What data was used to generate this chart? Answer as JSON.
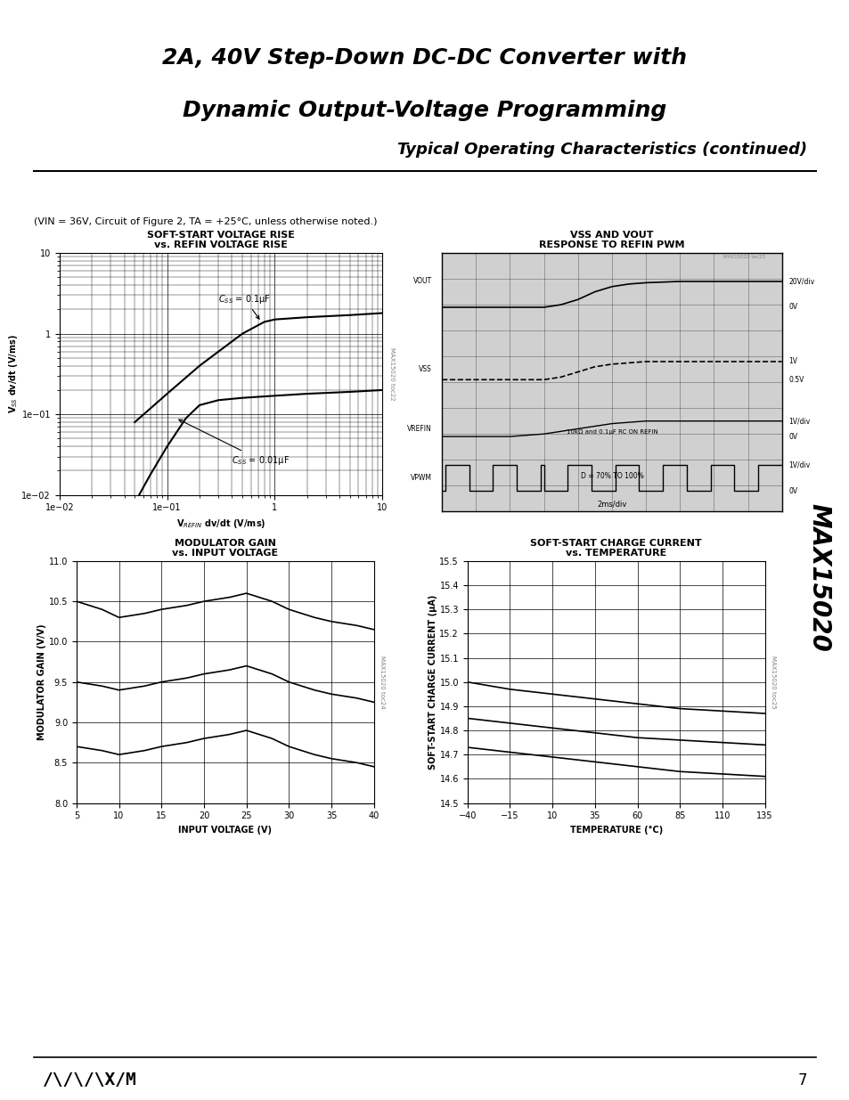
{
  "title_line1": "2A, 40V Step-Down DC-DC Converter with",
  "title_line2": "Dynamic Output-Voltage Programming",
  "section_title": "Typical Operating Characteristics (continued)",
  "subtitle": "(Vᴵₙ = 36V, Circuit of Figure 2, Tₐ = +25°C, unless otherwise noted.)",
  "subtitle_plain": "(VIN = 36V, Circuit of Figure 2, TA = +25°C, unless otherwise noted.)",
  "page_number": "7",
  "chart1": {
    "title_line1": "SOFT-START VOLTAGE RISE",
    "title_line2": "vs. REFIN VOLTAGE RISE",
    "xlabel": "VᴼEFIN dv/dt (V/ms)",
    "ylabel": "VSS dw/dt (V/ms)",
    "xlabel_plain": "VREFIN dv/dt (V/ms)",
    "ylabel_plain": "Vss dv/dt (V/ms)",
    "xmin": 0.01,
    "xmax": 10,
    "ymin": 0.01,
    "ymax": 10,
    "watermark": "MAX15020 toc22",
    "curve1_label": "CSS = 0.1μF",
    "curve2_label": "CSS = 0.01μF",
    "curve1_x": [
      0.05,
      0.1,
      0.2,
      0.5,
      0.8,
      1.0,
      2.0,
      5.0,
      10.0
    ],
    "curve1_y": [
      0.08,
      0.18,
      0.4,
      1.0,
      1.4,
      1.5,
      1.6,
      1.7,
      1.8
    ],
    "curve2_x": [
      0.05,
      0.07,
      0.1,
      0.15,
      0.2,
      0.3,
      0.5,
      1.0,
      2.0,
      5.0,
      10.0
    ],
    "curve2_y": [
      0.008,
      0.018,
      0.04,
      0.09,
      0.13,
      0.15,
      0.16,
      0.17,
      0.18,
      0.19,
      0.2
    ]
  },
  "chart2": {
    "title_line1": "VSS AND VOUT",
    "title_line2": "RESPONSE TO REFIN PWM",
    "watermark": "MAX15020 toc23",
    "is_oscilloscope": true,
    "signals": [
      "VOUT",
      "VSS",
      "VREFIN",
      "VPWM"
    ],
    "annotations": [
      "20V/div",
      "0V",
      "1V",
      "0.5V",
      "1V/div",
      "0V",
      "10kΩ and 0.1μF RC ON REFIN",
      "1V/div",
      "D = 70% TO 100%",
      "0V"
    ],
    "time_annotation": "2ms/div"
  },
  "chart3": {
    "title_line1": "MODULATOR GAIN",
    "title_line2": "vs. INPUT VOLTAGE",
    "xlabel": "INPUT VOLTAGE (V)",
    "ylabel": "MODULATOR GAIN (V/V)",
    "xmin": 5,
    "xmax": 40,
    "ymin": 8.0,
    "ymax": 11.0,
    "xticks": [
      5,
      10,
      15,
      20,
      25,
      30,
      35,
      40
    ],
    "yticks": [
      8.0,
      8.5,
      9.0,
      9.5,
      10.0,
      10.5,
      11.0
    ],
    "watermark": "MAX15020 toc24",
    "curve1_x": [
      5,
      8,
      10,
      13,
      15,
      18,
      20,
      23,
      25,
      28,
      30,
      33,
      35,
      38,
      40
    ],
    "curve1_y": [
      10.5,
      10.4,
      10.3,
      10.35,
      10.4,
      10.45,
      10.5,
      10.55,
      10.6,
      10.5,
      10.4,
      10.3,
      10.25,
      10.2,
      10.15
    ],
    "curve2_x": [
      5,
      8,
      10,
      13,
      15,
      18,
      20,
      23,
      25,
      28,
      30,
      33,
      35,
      38,
      40
    ],
    "curve2_y": [
      9.5,
      9.45,
      9.4,
      9.45,
      9.5,
      9.55,
      9.6,
      9.65,
      9.7,
      9.6,
      9.5,
      9.4,
      9.35,
      9.3,
      9.25
    ],
    "curve3_x": [
      5,
      8,
      10,
      13,
      15,
      18,
      20,
      23,
      25,
      28,
      30,
      33,
      35,
      38,
      40
    ],
    "curve3_y": [
      8.7,
      8.65,
      8.6,
      8.65,
      8.7,
      8.75,
      8.8,
      8.85,
      8.9,
      8.8,
      8.7,
      8.6,
      8.55,
      8.5,
      8.45
    ]
  },
  "chart4": {
    "title_line1": "SOFT-START CHARGE CURRENT",
    "title_line2": "vs. TEMPERATURE",
    "xlabel": "TEMPERATURE (°C)",
    "ylabel": "SOFT-START CHARGE CURRENT (μA)",
    "xmin": -40,
    "xmax": 135,
    "ymin": 14.5,
    "ymax": 15.5,
    "xticks": [
      -40,
      -15,
      10,
      35,
      60,
      85,
      110,
      135
    ],
    "yticks": [
      14.5,
      14.6,
      14.7,
      14.8,
      14.9,
      15.0,
      15.1,
      15.2,
      15.3,
      15.4,
      15.5
    ],
    "watermark": "MAX15020 toc25",
    "curve1_x": [
      -40,
      -15,
      10,
      35,
      60,
      85,
      110,
      135
    ],
    "curve1_y": [
      15.0,
      14.97,
      14.95,
      14.93,
      14.91,
      14.89,
      14.88,
      14.87
    ],
    "curve2_x": [
      -40,
      -15,
      10,
      35,
      60,
      85,
      110,
      135
    ],
    "curve2_y": [
      14.85,
      14.83,
      14.81,
      14.79,
      14.77,
      14.76,
      14.75,
      14.74
    ],
    "curve3_x": [
      -40,
      -15,
      10,
      35,
      60,
      85,
      110,
      135
    ],
    "curve3_y": [
      14.73,
      14.71,
      14.69,
      14.67,
      14.65,
      14.63,
      14.62,
      14.61
    ]
  },
  "colors": {
    "black": "#000000",
    "white": "#ffffff",
    "grid": "#000000",
    "curve": "#000000",
    "background": "#ffffff",
    "osc_bg": "#c8c8c8",
    "osc_trace": "#000000"
  }
}
